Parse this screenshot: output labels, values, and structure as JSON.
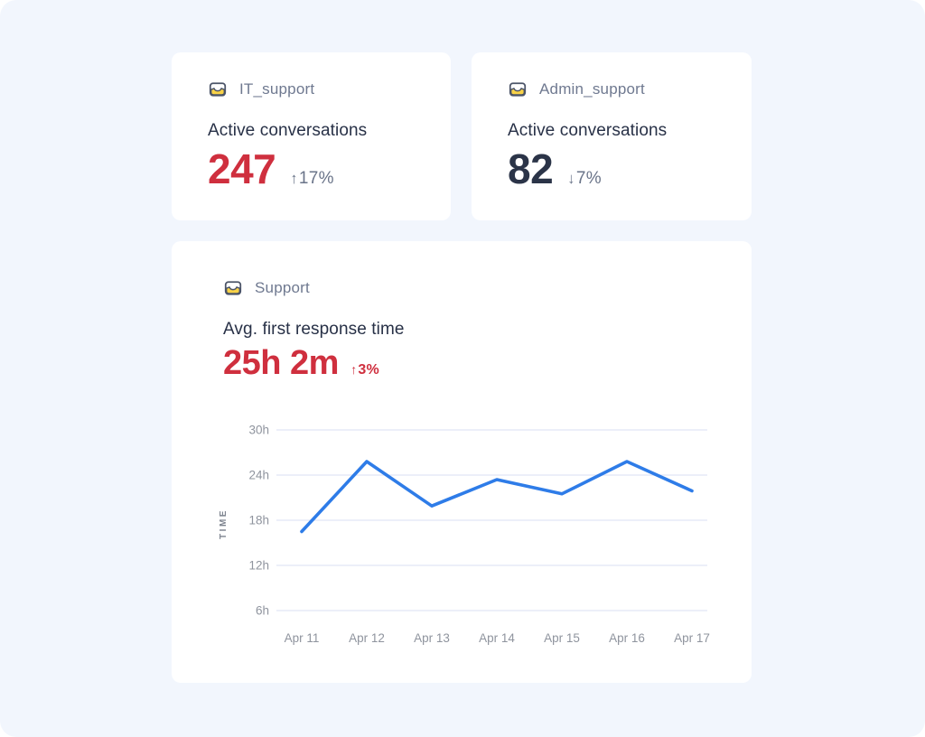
{
  "theme": {
    "background": "#f2f6fd",
    "card_background": "#ffffff",
    "accent_red": "#cf2f3e",
    "value_dark": "#2b3448",
    "muted_title": "#6f7990",
    "label_dark": "#283147",
    "delta_gray": "#6a7489",
    "line_blue": "#2e7ce8",
    "grid_color": "#e6eaf7",
    "axis_text": "#8f949e",
    "axis_title_text": "#7e848f",
    "icon_yellow": "#f8d247",
    "icon_stroke": "#4b5468"
  },
  "cards": {
    "it_support": {
      "icon": "inbox-icon",
      "title": "IT_support",
      "metric_label": "Active conversations",
      "value": "247",
      "value_color": "#cf2f3e",
      "delta_arrow": "↑",
      "delta_value": "17%",
      "delta_color": "#6a7489"
    },
    "admin_support": {
      "icon": "inbox-icon",
      "title": "Admin_support",
      "metric_label": "Active conversations",
      "value": "82",
      "value_color": "#2b3448",
      "delta_arrow": "↓",
      "delta_value": "7%",
      "delta_color": "#6a7489"
    },
    "support": {
      "icon": "inbox-icon",
      "title": "Support",
      "metric_label": "Avg. first response time",
      "value": "25h 2m",
      "value_color": "#cf2f3e",
      "delta_arrow": "↑",
      "delta_value": "3%",
      "delta_color": "#cf2f3e"
    }
  },
  "chart_data": {
    "type": "line",
    "title": "Avg. first response time",
    "x": [
      "Apr 11",
      "Apr 12",
      "Apr 13",
      "Apr 14",
      "Apr 15",
      "Apr 16",
      "Apr 17"
    ],
    "series": [
      {
        "name": "Avg. first response time (hours)",
        "values": [
          16.5,
          25.8,
          19.9,
          23.4,
          21.5,
          25.8,
          21.9
        ]
      }
    ],
    "xlabel": "",
    "ylabel": "TIME",
    "y_ticks": [
      {
        "value": 30,
        "label": "30h"
      },
      {
        "value": 24,
        "label": "24h"
      },
      {
        "value": 18,
        "label": "18h"
      },
      {
        "value": 12,
        "label": "12h"
      },
      {
        "value": 6,
        "label": "6h"
      }
    ],
    "ylim": [
      6,
      30
    ],
    "grid": true,
    "legend": false,
    "line_color": "#2e7ce8"
  }
}
